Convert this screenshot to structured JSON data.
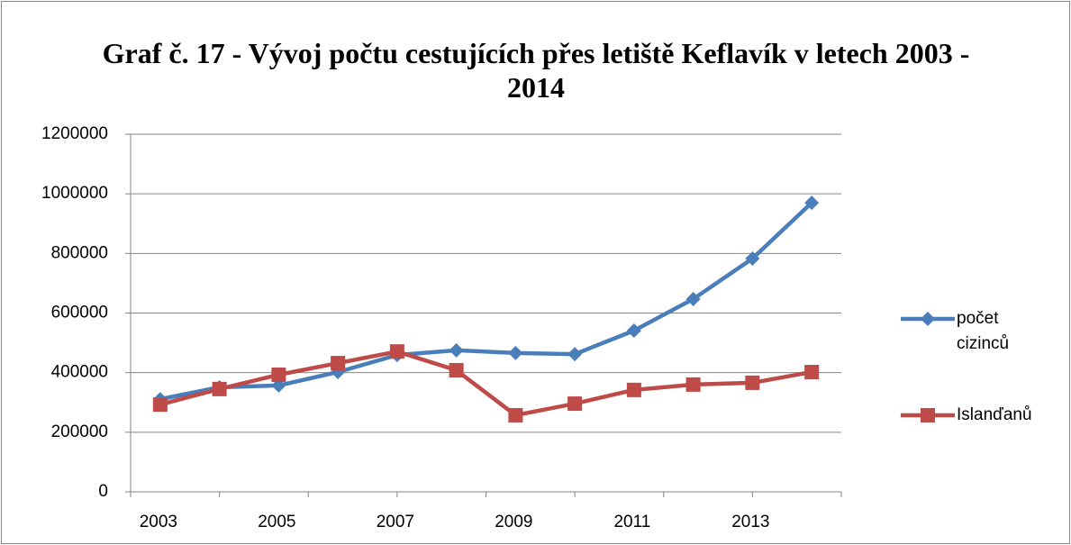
{
  "chart_data": {
    "type": "line",
    "title": "Graf č. 17 - Vývoj počtu cestujících přes letiště Keflavík v letech 2003 - 2014",
    "categories": [
      "2003",
      null,
      "2005",
      null,
      "2007",
      null,
      "2009",
      null,
      "2011",
      null,
      "2013",
      null
    ],
    "series": [
      {
        "name": "počet cizinců",
        "color": "#4a7ebb",
        "marker": "diamond",
        "values": [
          311000,
          351000,
          357000,
          402000,
          459000,
          475000,
          466000,
          462000,
          541000,
          647000,
          783000,
          970000
        ]
      },
      {
        "name": "Islanďanů",
        "color": "#be4b48",
        "marker": "square",
        "values": [
          293000,
          345000,
          393000,
          432000,
          471000,
          408000,
          257000,
          296000,
          342000,
          360000,
          366000,
          402000
        ]
      }
    ],
    "ylim": [
      0,
      1200000
    ],
    "yticks": [
      0,
      200000,
      400000,
      600000,
      800000,
      1000000,
      1200000
    ],
    "grid": true,
    "legend": "right"
  }
}
